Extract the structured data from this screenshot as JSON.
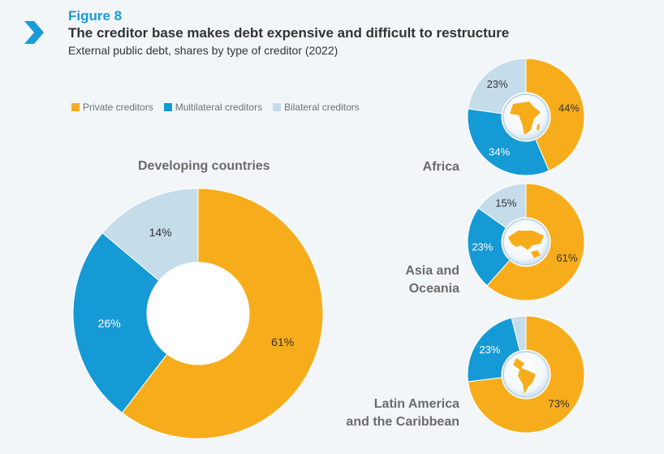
{
  "figure": {
    "label": "Figure 8",
    "title": "The creditor base makes debt expensive and difficult to restructure",
    "subtitle": "External public debt, shares by type of creditor (2022)"
  },
  "colors": {
    "private": "#f7ad1b",
    "multilateral": "#159ad6",
    "bilateral": "#c5dcea",
    "accent": "#1a9bd7"
  },
  "legend": [
    {
      "label": "Private creditors",
      "color": "#f7ad1b"
    },
    {
      "label": "Multilateral creditors",
      "color": "#159ad6"
    },
    {
      "label": "Bilateral creditors",
      "color": "#c5dcea"
    }
  ],
  "chart_data": [
    {
      "type": "pie",
      "title": "Developing countries",
      "categories": [
        "Private creditors",
        "Multilateral creditors",
        "Bilateral creditors"
      ],
      "values": [
        61,
        26,
        14
      ],
      "labels": [
        "61%",
        "26%",
        "14%"
      ]
    },
    {
      "type": "pie",
      "title": "Africa",
      "categories": [
        "Private creditors",
        "Multilateral creditors",
        "Bilateral creditors"
      ],
      "values": [
        44,
        34,
        23
      ],
      "labels": [
        "44%",
        "34%",
        "23%"
      ],
      "icon": "africa-globe-icon"
    },
    {
      "type": "pie",
      "title_lines": [
        "Asia and",
        "Oceania"
      ],
      "categories": [
        "Private creditors",
        "Multilateral creditors",
        "Bilateral creditors"
      ],
      "values": [
        61,
        23,
        15
      ],
      "labels": [
        "61%",
        "23%",
        "15%"
      ],
      "icon": "asia-oceania-globe-icon"
    },
    {
      "type": "pie",
      "title_lines": [
        "Latin America",
        "and the Caribbean"
      ],
      "categories": [
        "Private creditors",
        "Multilateral creditors",
        "Bilateral creditors"
      ],
      "values": [
        73,
        23,
        4
      ],
      "labels": [
        "73%",
        "23%",
        ""
      ],
      "icon": "latin-america-globe-icon"
    }
  ]
}
